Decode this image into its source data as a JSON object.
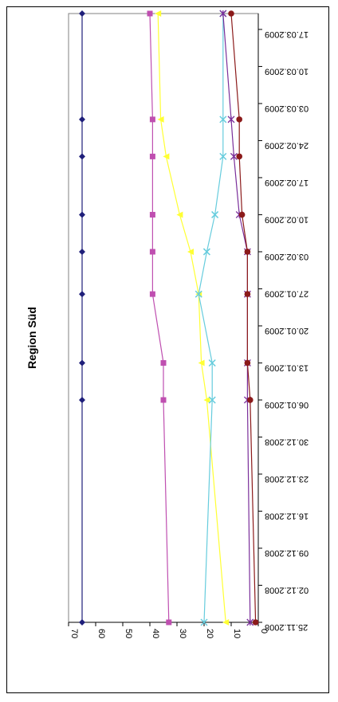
{
  "chart_data": {
    "type": "line",
    "title": "Region Süd",
    "xlabel": "",
    "ylabel": "",
    "ylim": [
      0,
      70
    ],
    "y_ticks": [
      "0",
      "10",
      "20",
      "30",
      "40",
      "50",
      "60",
      "70"
    ],
    "x_tick_labels": [
      "25.11.2008",
      "02.12.2008",
      "09.12.2008",
      "16.12.2008",
      "23.12.2008",
      "30.12.2008",
      "06.01.2009",
      "13.01.2009",
      "20.01.2009",
      "27.01.2009",
      "03.02.2009",
      "10.02.2009",
      "17.02.2009",
      "24.02.2009",
      "03.03.2009",
      "10.03.2009",
      "17.03.2009"
    ],
    "x_range": [
      "2008-11-25",
      "2009-03-20"
    ],
    "grid": false,
    "legend": "none",
    "series": [
      {
        "color": "#1F1F7A",
        "marker": "diamond",
        "x": [
          "2008-11-25",
          "2009-01-06",
          "2009-01-13",
          "2009-01-26",
          "2009-02-03",
          "2009-02-10",
          "2009-02-21",
          "2009-02-28",
          "2009-03-20"
        ],
        "y": [
          65,
          65,
          65,
          65,
          65,
          65,
          65,
          65,
          65
        ]
      },
      {
        "color": "#BF4FB0",
        "marker": "square",
        "x": [
          "2008-11-25",
          "2009-01-06",
          "2009-01-13",
          "2009-01-26",
          "2009-02-03",
          "2009-02-10",
          "2009-02-21",
          "2009-02-28",
          "2009-03-20"
        ],
        "y": [
          33,
          35,
          35,
          39,
          39,
          39,
          39,
          39,
          40
        ]
      },
      {
        "color": "#FFFF33",
        "marker": "triangle",
        "x": [
          "2008-11-25",
          "2009-01-06",
          "2009-01-13",
          "2009-01-26",
          "2009-02-03",
          "2009-02-10",
          "2009-02-21",
          "2009-02-28",
          "2009-03-20"
        ],
        "y": [
          12,
          19,
          21,
          22,
          25,
          29,
          34,
          36,
          37
        ]
      },
      {
        "color": "#66CCDD",
        "marker": "x",
        "x": [
          "2008-11-25",
          "2009-01-06",
          "2009-01-13",
          "2009-01-26",
          "2009-02-03",
          "2009-02-10",
          "2009-02-21",
          "2009-02-28",
          "2009-03-20"
        ],
        "y": [
          20,
          17,
          17,
          22,
          19,
          16,
          13,
          13,
          13
        ]
      },
      {
        "color": "#7A2E9A",
        "marker": "star",
        "x": [
          "2008-11-25",
          "2009-01-06",
          "2009-01-13",
          "2009-01-26",
          "2009-02-03",
          "2009-02-10",
          "2009-02-21",
          "2009-02-28",
          "2009-03-20"
        ],
        "y": [
          3,
          4,
          4,
          4,
          4,
          7,
          9,
          10,
          13
        ]
      },
      {
        "color": "#8B1A1A",
        "marker": "circle",
        "x": [
          "2008-11-25",
          "2009-01-06",
          "2009-01-13",
          "2009-01-26",
          "2009-02-03",
          "2009-02-10",
          "2009-02-21",
          "2009-02-28",
          "2009-03-20"
        ],
        "y": [
          1,
          3,
          4,
          4,
          4,
          6,
          7,
          7,
          10
        ]
      }
    ]
  }
}
